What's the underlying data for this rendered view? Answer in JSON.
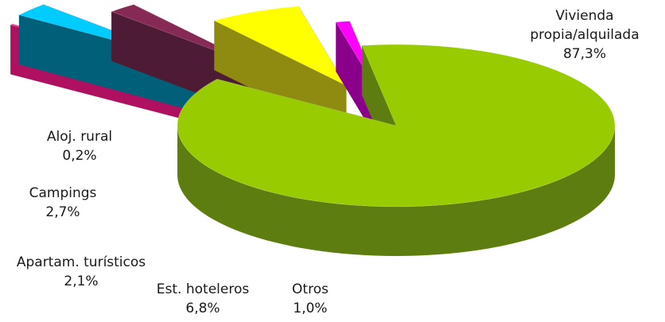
{
  "chart_data": {
    "type": "pie",
    "style": "3d-exploded",
    "title": "",
    "legend": "none",
    "slices": [
      {
        "label": "Vivienda",
        "label_line2": "propia/alquilada",
        "value": 87.3,
        "value_text": "87,3%",
        "color": "#99cc00",
        "side_color": "#5e7d10"
      },
      {
        "label": "Otros",
        "value": 1.0,
        "value_text": "1,0%",
        "color": "#ff00ff",
        "side_color": "#8b008b"
      },
      {
        "label": "Est. hoteleros",
        "value": 6.8,
        "value_text": "6,8%",
        "color": "#ffff00",
        "side_color": "#8f8a10"
      },
      {
        "label": "Apartam. turísticos",
        "value": 2.1,
        "value_text": "2,1%",
        "color": "#862a55",
        "side_color": "#4e1b34"
      },
      {
        "label": "Campings",
        "value": 2.7,
        "value_text": "2,7%",
        "color": "#00ccff",
        "side_color": "#00607a"
      },
      {
        "label": "Aloj. rural",
        "value": 0.2,
        "value_text": "0,2%",
        "color": "#ff3399",
        "side_color": "#b01060"
      }
    ]
  }
}
